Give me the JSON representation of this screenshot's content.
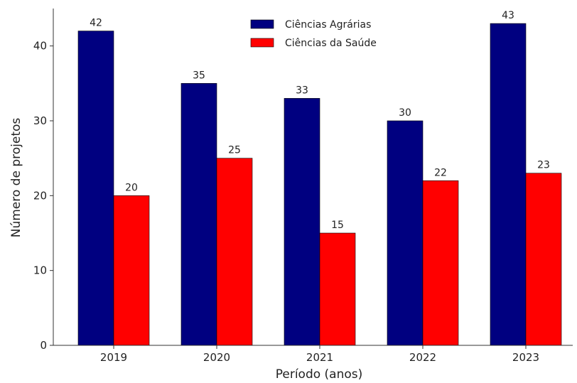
{
  "chart_data": {
    "type": "bar",
    "categories": [
      "2019",
      "2020",
      "2021",
      "2022",
      "2023"
    ],
    "series": [
      {
        "name": "Ciências Agrárias",
        "color": "#000080",
        "values": [
          42,
          35,
          33,
          30,
          43
        ]
      },
      {
        "name": "Ciências da Saúde",
        "color": "#ff0000",
        "values": [
          20,
          25,
          15,
          22,
          23
        ]
      }
    ],
    "xlabel": "Período (anos)",
    "ylabel": "Número de projetos",
    "ylim": [
      0,
      45
    ],
    "yticks": [
      "0",
      "10",
      "20",
      "30",
      "40"
    ],
    "grid": false,
    "legend_position": "top-center",
    "data_labels": true
  }
}
